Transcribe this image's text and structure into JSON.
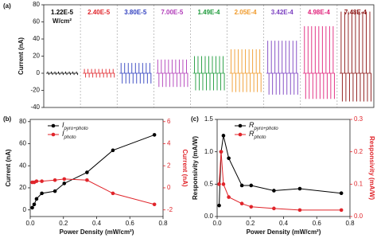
{
  "chart_data": [
    {
      "type": "transient",
      "label": "(a)",
      "ylabel": "Current (nA)",
      "unit": "W/cm²",
      "ylim": [
        -40,
        80
      ],
      "yticks": [
        -40,
        -20,
        0,
        20,
        40,
        60,
        80
      ],
      "series": [
        {
          "name": "1.22E-5",
          "color": "#000000",
          "values": [
            2,
            -2
          ]
        },
        {
          "name": "2.40E-5",
          "color": "#e0242a",
          "values": [
            5,
            -5
          ]
        },
        {
          "name": "3.80E-5",
          "color": "#2f3fbf",
          "values": [
            12,
            -12
          ]
        },
        {
          "name": "7.00E-5",
          "color": "#b03ab8",
          "values": [
            16,
            -16
          ]
        },
        {
          "name": "1.49E-4",
          "color": "#1c9a3a",
          "values": [
            20,
            -20
          ]
        },
        {
          "name": "2.05E-4",
          "color": "#f09a2a",
          "values": [
            28,
            -22
          ]
        },
        {
          "name": "3.42E-4",
          "color": "#7a3ec0",
          "values": [
            38,
            -25
          ]
        },
        {
          "name": "4.98E-4",
          "color": "#e0207a",
          "values": [
            55,
            -30
          ]
        },
        {
          "name": "7.48E-4",
          "color": "#8a1010",
          "values": [
            72,
            -33
          ]
        }
      ]
    },
    {
      "type": "line",
      "label": "(b)",
      "xlabel": "Power Density (mW/cm²)",
      "ylabel": "Current (nA)",
      "y2label": "Current (nA)",
      "xlim": [
        0,
        0.8
      ],
      "xticks": [
        {
          "value": 0,
          "label": "0.0"
        },
        0.2,
        0.4,
        0.6,
        0.8
      ],
      "ylim": [
        -6,
        82
      ],
      "yticks": [
        0,
        20,
        40,
        60,
        80
      ],
      "y2lim": [
        -2.6,
        6.2
      ],
      "y2ticks": [
        -2,
        0,
        2,
        4,
        6
      ],
      "x": [
        0.0122,
        0.024,
        0.038,
        0.07,
        0.149,
        0.205,
        0.342,
        0.498,
        0.748
      ],
      "series": [
        {
          "name": "I",
          "subscript": "pyro+photo",
          "color": "#000000",
          "values": [
            2,
            5,
            10,
            15,
            17,
            24,
            34,
            54,
            68
          ]
        },
        {
          "name": "I",
          "subscript": "photo",
          "color": "#e0242a",
          "axis": "y2",
          "values": [
            0.5,
            0.5,
            0.6,
            0.6,
            0.7,
            0.8,
            0.7,
            -0.5,
            -1.5
          ]
        }
      ]
    },
    {
      "type": "line",
      "label": "(c)",
      "xlabel": "Power Density (mW/cm²)",
      "ylabel": "Responsivity (mA/W)",
      "y2label": "Responsivity (mA/W)",
      "xlim": [
        0,
        0.8
      ],
      "xticks": [
        {
          "value": 0,
          "label": "0.0"
        },
        0.2,
        0.4,
        0.6,
        0.8
      ],
      "ylim": [
        0,
        1.5
      ],
      "yticks": [
        {
          "value": 0,
          "label": "0.0"
        },
        0.5,
        {
          "value": 1,
          "label": "1.0"
        },
        1.5
      ],
      "y2lim": [
        0,
        0.3
      ],
      "y2ticks": [
        {
          "value": 0,
          "label": "0.0"
        },
        0.1,
        0.2,
        0.3
      ],
      "x": [
        0.0122,
        0.024,
        0.038,
        0.07,
        0.149,
        0.205,
        0.342,
        0.498,
        0.748
      ],
      "series": [
        {
          "name": "R",
          "subscript": "pyro+photo",
          "color": "#000000",
          "values": [
            0.17,
            1.0,
            1.25,
            0.9,
            0.48,
            0.48,
            0.4,
            0.43,
            0.36
          ]
        },
        {
          "name": "R",
          "subscript": "photo",
          "color": "#e0242a",
          "axis": "y2",
          "values": [
            0.1,
            0.2,
            0.1,
            0.06,
            0.04,
            0.03,
            0.025,
            0.02,
            0.02
          ]
        }
      ]
    }
  ]
}
